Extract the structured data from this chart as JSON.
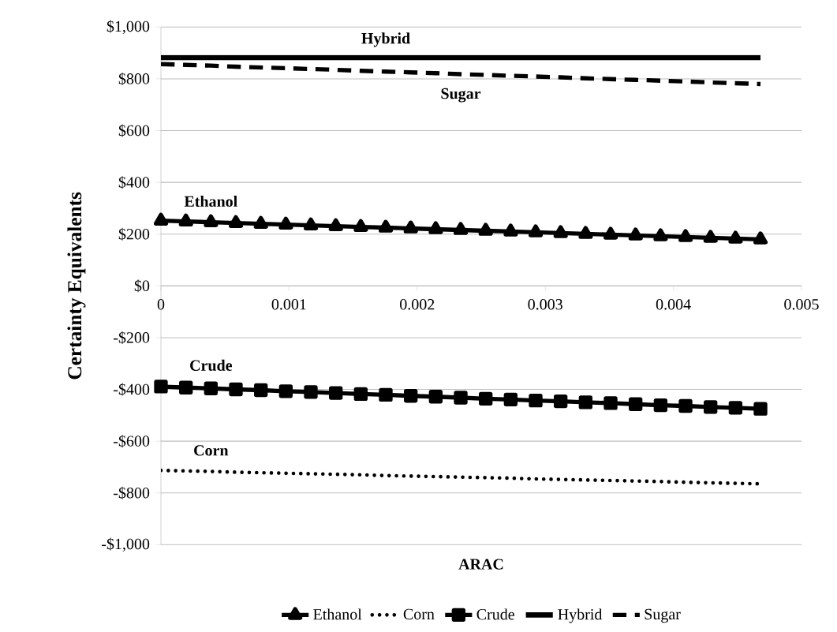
{
  "chart_data": {
    "type": "line",
    "xlabel": "ARAC",
    "ylabel": "Certainty Equivalents",
    "x": [
      0,
      0.000195,
      0.00039,
      0.000585,
      0.00078,
      0.000975,
      0.00117,
      0.001365,
      0.00156,
      0.001755,
      0.00195,
      0.002145,
      0.00234,
      0.002535,
      0.00273,
      0.002925,
      0.00312,
      0.003315,
      0.00351,
      0.003705,
      0.0039,
      0.004095,
      0.00429,
      0.004485,
      0.00468
    ],
    "series": [
      {
        "name": "Ethanol",
        "color": "#000000",
        "marker": "triangle",
        "line_style": "solid",
        "values": [
          252,
          249,
          246,
          243,
          240,
          237,
          234,
          231,
          228,
          225,
          222,
          219,
          216,
          213,
          210,
          207,
          204,
          201,
          198,
          195,
          192,
          189,
          186,
          183,
          180
        ]
      },
      {
        "name": "Corn",
        "color": "#000000",
        "marker": "none",
        "line_style": "dotted",
        "values": [
          -713,
          -715,
          -717,
          -720,
          -722,
          -724,
          -726,
          -728,
          -730,
          -733,
          -735,
          -737,
          -739,
          -741,
          -743,
          -746,
          -748,
          -750,
          -752,
          -754,
          -756,
          -759,
          -761,
          -763,
          -765
        ]
      },
      {
        "name": "Crude",
        "color": "#000000",
        "marker": "square",
        "line_style": "solid",
        "values": [
          -389,
          -393,
          -396,
          -400,
          -403,
          -407,
          -410,
          -414,
          -418,
          -421,
          -425,
          -428,
          -432,
          -436,
          -439,
          -443,
          -446,
          -450,
          -453,
          -457,
          -461,
          -464,
          -468,
          -471,
          -475
        ]
      },
      {
        "name": "Hybrid",
        "color": "#000000",
        "marker": "none",
        "line_style": "solid",
        "values": [
          882,
          882,
          882,
          882,
          882,
          882,
          882,
          882,
          882,
          882,
          882,
          882,
          882,
          882,
          882,
          882,
          882,
          882,
          882,
          882,
          882,
          882,
          882,
          882,
          882
        ]
      },
      {
        "name": "Sugar",
        "color": "#000000",
        "marker": "none",
        "line_style": "dashed",
        "values": [
          857,
          854,
          851,
          847,
          844,
          841,
          838,
          835,
          831,
          828,
          825,
          822,
          818,
          815,
          812,
          809,
          806,
          802,
          799,
          796,
          793,
          790,
          786,
          783,
          780
        ]
      }
    ],
    "xlim": [
      0,
      0.005
    ],
    "xticks": [
      0,
      0.001,
      0.002,
      0.003,
      0.004,
      0.005
    ],
    "ylim": [
      -1000,
      1000
    ],
    "yticks": [
      {
        "value": -1000,
        "label": "-$1,000"
      },
      {
        "value": -800,
        "label": "-$800"
      },
      {
        "value": -600,
        "label": "-$600"
      },
      {
        "value": -400,
        "label": "-$400"
      },
      {
        "value": -200,
        "label": "-$200"
      },
      {
        "value": 0,
        "label": "$0"
      },
      {
        "value": 200,
        "label": "$200"
      },
      {
        "value": 400,
        "label": "$400"
      },
      {
        "value": 600,
        "label": "$600"
      },
      {
        "value": 800,
        "label": "$800"
      },
      {
        "value": 1000,
        "label": "$1,000"
      }
    ],
    "grid": "y",
    "legend": "bottom"
  }
}
